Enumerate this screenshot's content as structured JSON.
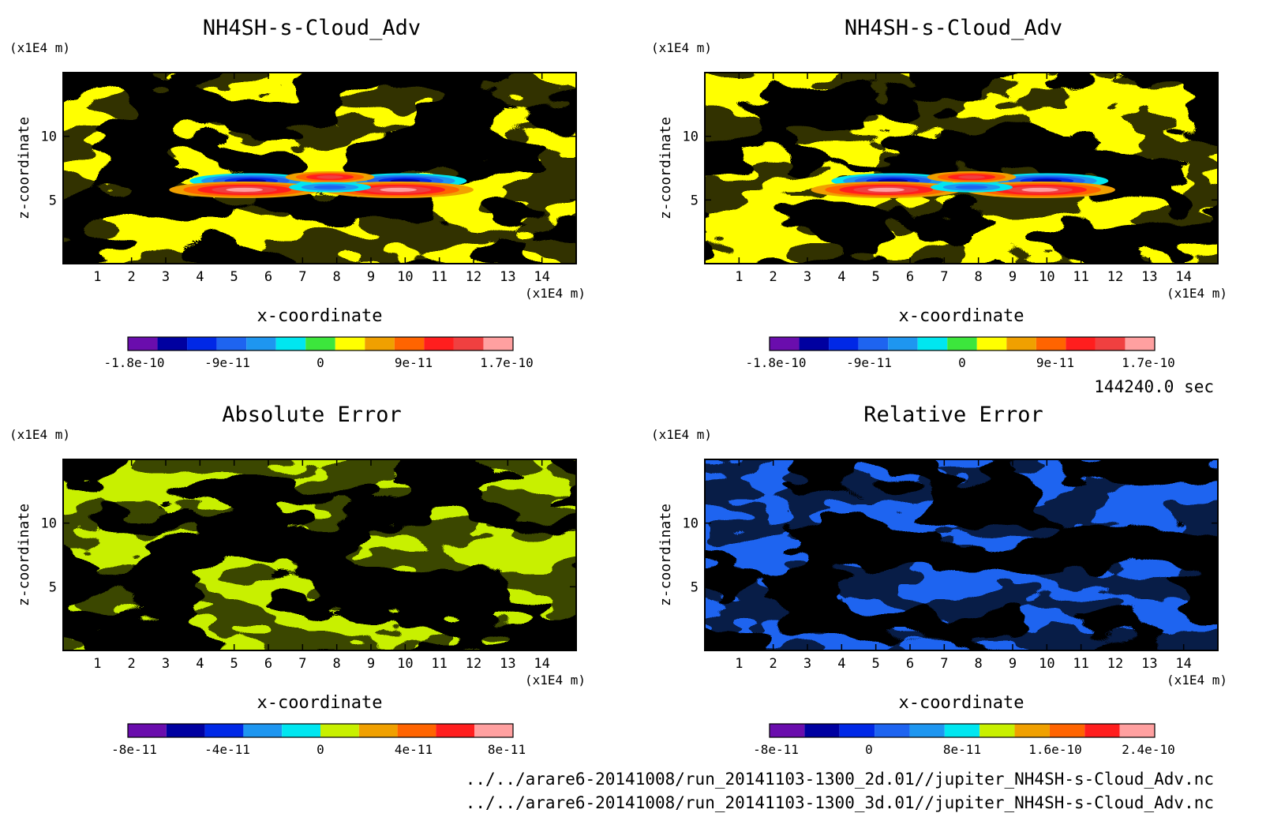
{
  "time_label": "144240.0 sec",
  "files": [
    "../../arare6-20141008/run_20141103-1300_2d.01//jupiter_NH4SH-s-Cloud_Adv.nc",
    "../../arare6-20141008/run_20141103-1300_3d.01//jupiter_NH4SH-s-Cloud_Adv.nc"
  ],
  "colors": {
    "v1": "#6a0dad",
    "v2": "#0000a0",
    "v3": "#0028e6",
    "v4": "#1e64f0",
    "v5": "#1e96f0",
    "v6": "#00e6f0",
    "v7": "#3ce63c",
    "v8": "#ffff00",
    "v9": "#c8f000",
    "v10": "#f0a000",
    "v11": "#ff6400",
    "v12": "#ff1e1e",
    "v13": "#f04040",
    "v14": "#ffa0a0"
  },
  "chart_data": [
    {
      "type": "heatmap",
      "title": "NH4SH-s-Cloud_Adv",
      "xlabel": "x-coordinate",
      "ylabel": "z-coordinate",
      "x_unit": "(x1E4 m)",
      "y_unit": "(x1E4 m)",
      "xlim": [
        0,
        15
      ],
      "ylim": [
        0,
        15
      ],
      "x_ticks": [
        1,
        2,
        3,
        4,
        5,
        6,
        7,
        8,
        9,
        10,
        11,
        12,
        13,
        14
      ],
      "y_ticks": [
        5,
        10
      ],
      "colorbar": {
        "levels": [
          "#6a0dad",
          "#0000a0",
          "#0028e6",
          "#1e64f0",
          "#1e96f0",
          "#00e6f0",
          "#3ce63c",
          "#ffff00",
          "#f0a000",
          "#ff6400",
          "#ff1e1e",
          "#f04040",
          "#ffa0a0"
        ],
        "tick_labels": [
          "-1.8e-10",
          "-9e-11",
          "0",
          "9e-11",
          "1.7e-10"
        ]
      }
    },
    {
      "type": "heatmap",
      "title": "NH4SH-s-Cloud_Adv",
      "xlabel": "x-coordinate",
      "ylabel": "z-coordinate",
      "x_unit": "(x1E4 m)",
      "y_unit": "(x1E4 m)",
      "xlim": [
        0,
        15
      ],
      "ylim": [
        0,
        15
      ],
      "x_ticks": [
        1,
        2,
        3,
        4,
        5,
        6,
        7,
        8,
        9,
        10,
        11,
        12,
        13,
        14
      ],
      "y_ticks": [
        5,
        10
      ],
      "colorbar": {
        "levels": [
          "#6a0dad",
          "#0000a0",
          "#0028e6",
          "#1e64f0",
          "#1e96f0",
          "#00e6f0",
          "#3ce63c",
          "#ffff00",
          "#f0a000",
          "#ff6400",
          "#ff1e1e",
          "#f04040",
          "#ffa0a0"
        ],
        "tick_labels": [
          "-1.8e-10",
          "-9e-11",
          "0",
          "9e-11",
          "1.7e-10"
        ]
      }
    },
    {
      "type": "heatmap",
      "title": "Absolute Error",
      "xlabel": "x-coordinate",
      "ylabel": "z-coordinate",
      "x_unit": "(x1E4 m)",
      "y_unit": "(x1E4 m)",
      "xlim": [
        0,
        15
      ],
      "ylim": [
        0,
        15
      ],
      "x_ticks": [
        1,
        2,
        3,
        4,
        5,
        6,
        7,
        8,
        9,
        10,
        11,
        12,
        13,
        14
      ],
      "y_ticks": [
        5,
        10
      ],
      "colorbar": {
        "levels": [
          "#6a0dad",
          "#0000a0",
          "#0028e6",
          "#1e96f0",
          "#00e6f0",
          "#c8f000",
          "#f0a000",
          "#ff6400",
          "#ff1e1e",
          "#ffa0a0"
        ],
        "tick_labels": [
          "-8e-11",
          "-4e-11",
          "0",
          "4e-11",
          "8e-11"
        ]
      }
    },
    {
      "type": "heatmap",
      "title": "Relative Error",
      "xlabel": "x-coordinate",
      "ylabel": "z-coordinate",
      "x_unit": "(x1E4 m)",
      "y_unit": "(x1E4 m)",
      "xlim": [
        0,
        15
      ],
      "ylim": [
        0,
        15
      ],
      "x_ticks": [
        1,
        2,
        3,
        4,
        5,
        6,
        7,
        8,
        9,
        10,
        11,
        12,
        13,
        14
      ],
      "y_ticks": [
        5,
        10
      ],
      "colorbar": {
        "levels": [
          "#6a0dad",
          "#0000a0",
          "#0028e6",
          "#1e64f0",
          "#1e96f0",
          "#00e6f0",
          "#c8f000",
          "#f0a000",
          "#ff6400",
          "#ff1e1e",
          "#ffa0a0"
        ],
        "tick_labels": [
          "-8e-11",
          "0",
          "8e-11",
          "1.6e-10",
          "2.4e-10"
        ]
      }
    }
  ]
}
